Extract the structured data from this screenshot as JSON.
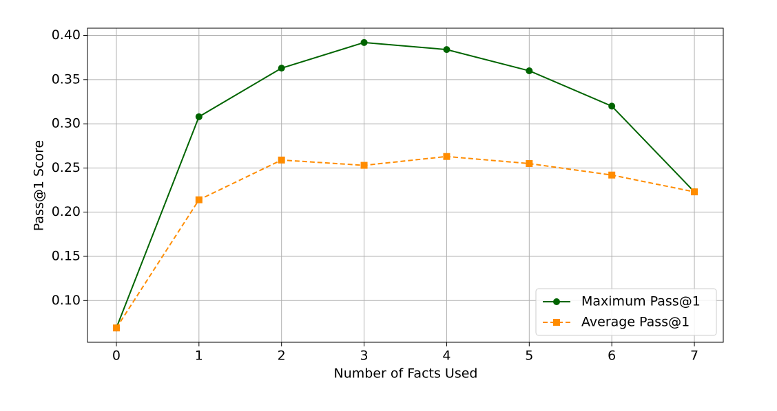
{
  "chart_data": {
    "type": "line",
    "x_label": "Number of Facts Used",
    "y_label": "Pass@1 Score",
    "x": [
      0,
      1,
      2,
      3,
      4,
      5,
      6,
      7
    ],
    "series": [
      {
        "name": "Maximum Pass@1",
        "color": "#006400",
        "marker": "circle",
        "linestyle": "solid",
        "values": [
          0.069,
          0.308,
          0.363,
          0.392,
          0.384,
          0.36,
          0.32,
          0.223
        ]
      },
      {
        "name": "Average Pass@1",
        "color": "#ff8c00",
        "marker": "square",
        "linestyle": "dashed",
        "values": [
          0.069,
          0.214,
          0.259,
          0.253,
          0.263,
          0.255,
          0.242,
          0.223
        ]
      }
    ],
    "xlim": [
      -0.35,
      7.35
    ],
    "ylim": [
      0.0528,
      0.4082
    ],
    "xticks": [
      0,
      1,
      2,
      3,
      4,
      5,
      6,
      7
    ],
    "yticks": [
      {
        "value": 0.1,
        "label": "0.10"
      },
      {
        "value": 0.15,
        "label": "0.15"
      },
      {
        "value": 0.2,
        "label": "0.20"
      },
      {
        "value": 0.25,
        "label": "0.25"
      },
      {
        "value": 0.3,
        "label": "0.30"
      },
      {
        "value": 0.35,
        "label": "0.35"
      },
      {
        "value": 0.4,
        "label": "0.40"
      }
    ],
    "grid": true,
    "legend": "lower right"
  }
}
